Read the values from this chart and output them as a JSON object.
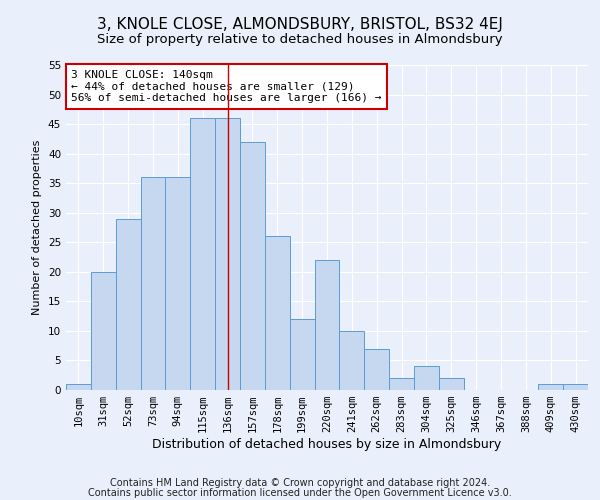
{
  "title1": "3, KNOLE CLOSE, ALMONDSBURY, BRISTOL, BS32 4EJ",
  "title2": "Size of property relative to detached houses in Almondsbury",
  "xlabel": "Distribution of detached houses by size in Almondsbury",
  "ylabel": "Number of detached properties",
  "categories": [
    "10sqm",
    "31sqm",
    "52sqm",
    "73sqm",
    "94sqm",
    "115sqm",
    "136sqm",
    "157sqm",
    "178sqm",
    "199sqm",
    "220sqm",
    "241sqm",
    "262sqm",
    "283sqm",
    "304sqm",
    "325sqm",
    "346sqm",
    "367sqm",
    "388sqm",
    "409sqm",
    "430sqm"
  ],
  "values": [
    1,
    20,
    29,
    36,
    36,
    46,
    46,
    42,
    26,
    12,
    22,
    10,
    7,
    2,
    4,
    2,
    0,
    0,
    0,
    1,
    1
  ],
  "bar_color": "#c5d8f0",
  "bar_edge_color": "#5b9bd5",
  "vline_x": 6,
  "vline_color": "#cc0000",
  "annotation_text": "3 KNOLE CLOSE: 140sqm\n← 44% of detached houses are smaller (129)\n56% of semi-detached houses are larger (166) →",
  "annotation_box_color": "#ffffff",
  "annotation_box_edge": "#cc0000",
  "ylim": [
    0,
    55
  ],
  "yticks": [
    0,
    5,
    10,
    15,
    20,
    25,
    30,
    35,
    40,
    45,
    50,
    55
  ],
  "footnote1": "Contains HM Land Registry data © Crown copyright and database right 2024.",
  "footnote2": "Contains public sector information licensed under the Open Government Licence v3.0.",
  "bg_color": "#eaf0fb",
  "grid_color": "#ffffff",
  "title1_fontsize": 11,
  "title2_fontsize": 9.5,
  "xlabel_fontsize": 9,
  "ylabel_fontsize": 8,
  "footnote_fontsize": 7,
  "tick_fontsize": 7.5,
  "annot_fontsize": 8
}
